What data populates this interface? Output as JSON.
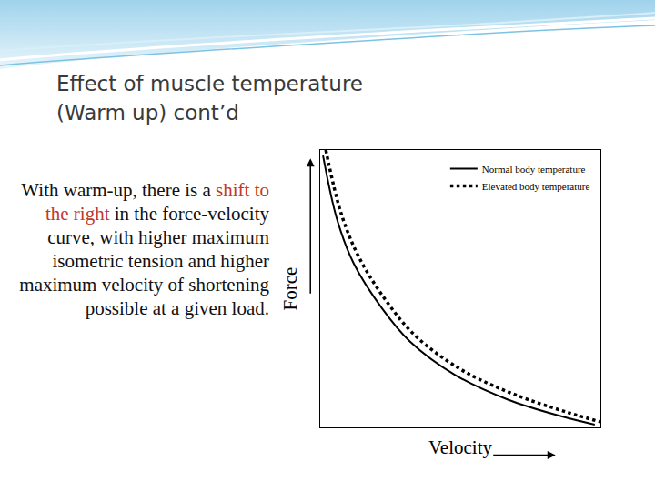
{
  "slide": {
    "title": [
      "Effect of muscle temperature",
      "(Warm up) cont’d"
    ],
    "text": [
      {
        "text": "With warm-up, there is a "
      },
      {
        "text": "shift to the right",
        "highlight": true
      },
      {
        "text": " in the force-velocity curve, with higher maximum isometric tension and higher maximum velocity of shortening possible at a given load."
      }
    ]
  },
  "chart_data": {
    "type": "line",
    "x_label": "Velocity",
    "y_label": "Force",
    "series": [
      {
        "name": "Normal body temperature",
        "color": "#000000",
        "line_style": "solid",
        "x": [
          1,
          6,
          12,
          22,
          32,
          48,
          67,
          86,
          98
        ],
        "values": [
          98,
          75,
          59,
          43,
          31,
          19,
          10,
          4,
          1
        ]
      },
      {
        "name": "Elevated body temperature",
        "color": "#000000",
        "line_style": "dotted",
        "x": [
          2,
          7.5,
          14,
          24,
          34,
          50,
          69,
          88,
          100
        ],
        "values": [
          100,
          77,
          61,
          45,
          33,
          21,
          12,
          5.5,
          2
        ]
      }
    ],
    "xlim": [
      0,
      100
    ],
    "ylim": [
      0,
      100
    ],
    "xticks": [],
    "yticks": [],
    "tick_labels": false,
    "grid": false,
    "legend": "upper right"
  }
}
